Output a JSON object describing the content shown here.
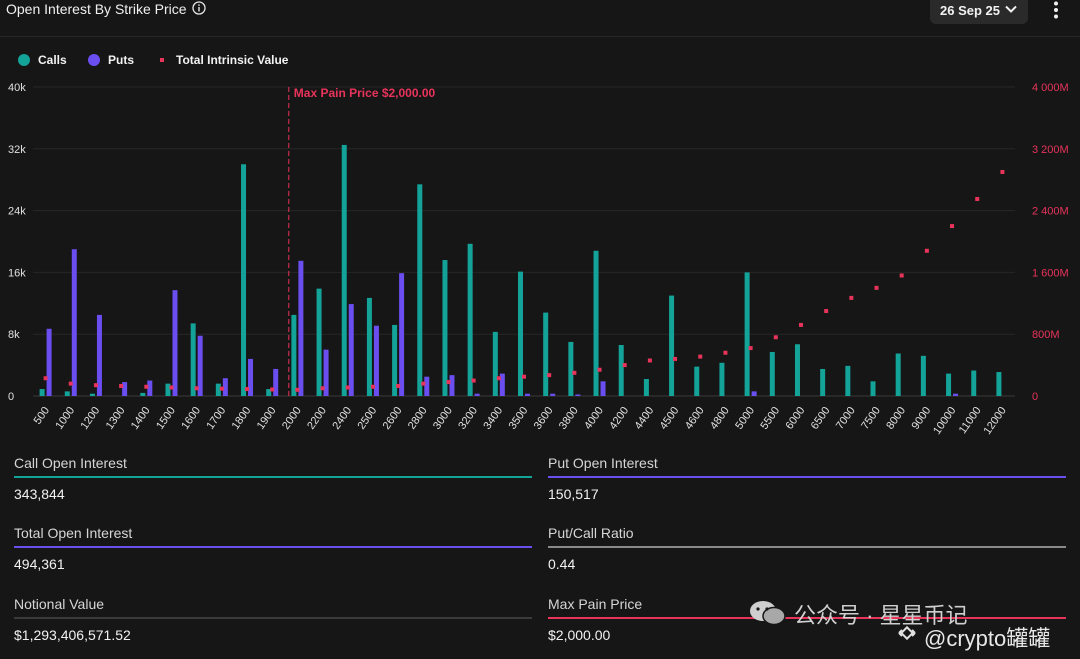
{
  "header": {
    "title": "Open Interest By Strike Price",
    "date": "26 Sep 25"
  },
  "legend": {
    "calls": "Calls",
    "puts": "Puts",
    "intrinsic": "Total Intrinsic Value"
  },
  "colors": {
    "calls": "#14a398",
    "puts": "#6b4ef0",
    "intrinsic": "#e8335a",
    "gray": "#8a8a8a"
  },
  "chart_data": {
    "type": "bar",
    "categories": [
      "500",
      "1000",
      "1200",
      "1300",
      "1400",
      "1500",
      "1600",
      "1700",
      "1800",
      "1900",
      "2000",
      "2200",
      "2400",
      "2500",
      "2600",
      "2800",
      "3000",
      "3200",
      "3400",
      "3500",
      "3600",
      "3800",
      "4000",
      "4200",
      "4400",
      "4500",
      "4600",
      "4800",
      "5000",
      "5500",
      "6000",
      "6500",
      "7000",
      "7500",
      "8000",
      "9000",
      "10000",
      "11000",
      "12000"
    ],
    "series": [
      {
        "name": "Calls",
        "axis": "left",
        "values": [
          900,
          600,
          300,
          0,
          400,
          1600,
          9400,
          1600,
          30000,
          900,
          10500,
          13900,
          32500,
          12700,
          9200,
          27400,
          17600,
          19700,
          8300,
          16100,
          10800,
          7000,
          18800,
          6600,
          2200,
          13000,
          3800,
          4300,
          16000,
          5700,
          6700,
          3500,
          3900,
          1900,
          5500,
          5200,
          2900,
          3300,
          3100
        ]
      },
      {
        "name": "Puts",
        "axis": "left",
        "values": [
          8700,
          19000,
          10500,
          1800,
          2000,
          13700,
          7800,
          2300,
          4800,
          3500,
          17500,
          6000,
          11900,
          9100,
          15900,
          2500,
          2700,
          300,
          2900,
          300,
          300,
          200,
          1900,
          0,
          0,
          0,
          0,
          0,
          600,
          0,
          0,
          0,
          0,
          0,
          0,
          0,
          300,
          0,
          0
        ]
      },
      {
        "name": "Total Intrinsic Value",
        "axis": "right",
        "type": "scatter",
        "values": [
          230000000,
          160000000,
          140000000,
          130000000,
          120000000,
          110000000,
          100000000,
          95000000,
          90000000,
          85000000,
          80000000,
          100000000,
          110000000,
          120000000,
          130000000,
          160000000,
          180000000,
          200000000,
          230000000,
          250000000,
          270000000,
          300000000,
          340000000,
          400000000,
          460000000,
          480000000,
          510000000,
          560000000,
          620000000,
          760000000,
          920000000,
          1100000000,
          1270000000,
          1400000000,
          1560000000,
          1880000000,
          2200000000,
          2550000000,
          2900000000
        ]
      }
    ],
    "ylim": [
      0,
      40000
    ],
    "y_ticks": [
      "0",
      "8k",
      "16k",
      "24k",
      "32k",
      "40k"
    ],
    "y2lim": [
      0,
      4000000000
    ],
    "y2_ticks": [
      "0",
      "800M",
      "1 600M",
      "2 400M",
      "3 200M",
      "4 000M"
    ],
    "annotation": "Max Pain Price $2,000.00",
    "annotation_category": "2000"
  },
  "stats": {
    "call_oi_label": "Call Open Interest",
    "call_oi_value": "343,844",
    "put_oi_label": "Put Open Interest",
    "put_oi_value": "150,517",
    "total_oi_label": "Total Open Interest",
    "total_oi_value": "494,361",
    "pcr_label": "Put/Call Ratio",
    "pcr_value": "0.44",
    "notional_label": "Notional Value",
    "notional_value": "$1,293,406,571.52",
    "maxpain_label": "Max Pain Price",
    "maxpain_value": "$2,000.00"
  },
  "watermark": {
    "line1": "公众号 · 星星币记",
    "line2": "@crypto罐罐"
  }
}
